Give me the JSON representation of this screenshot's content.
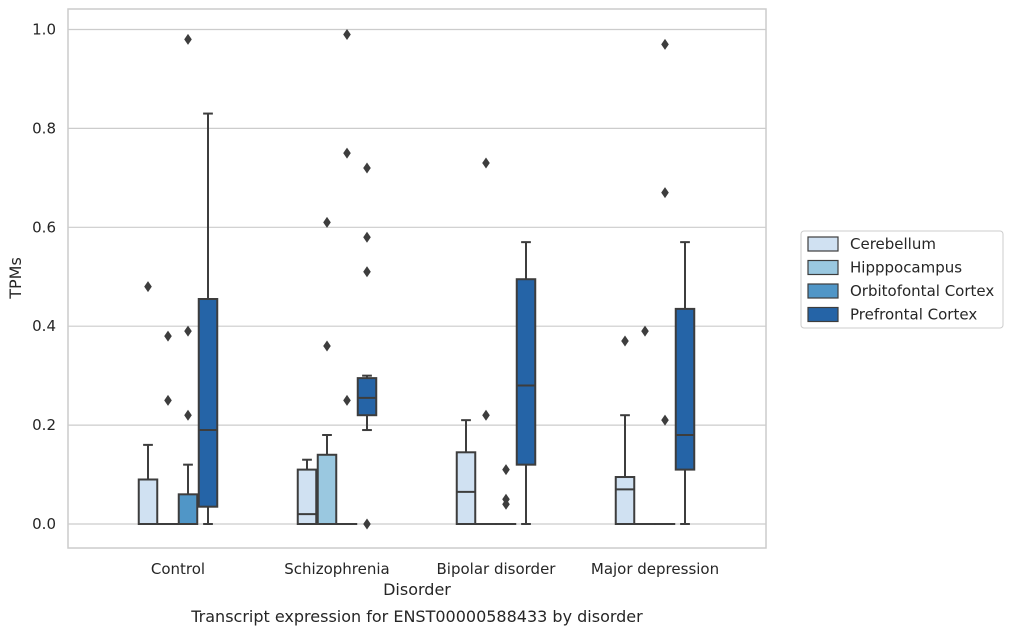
{
  "chart_data": {
    "type": "box",
    "caption": "Transcript expression for ENST00000588433 by disorder",
    "xlabel": "Disorder",
    "ylabel": "TPMs",
    "ylim": [
      -0.05,
      1.04
    ],
    "yticks": [
      0.0,
      0.2,
      0.4,
      0.6,
      0.8,
      1.0
    ],
    "ytick_labels": [
      "0.0",
      "0.2",
      "0.4",
      "0.6",
      "0.8",
      "1.0"
    ],
    "grid": "horizontal",
    "legend_position": "right",
    "categories": [
      "Control",
      "Schizophrenia",
      "Bipolar disorder",
      "Major depression"
    ],
    "series": [
      {
        "name": "Cerebellum",
        "color": "#d0e1f2",
        "boxes": [
          {
            "whislo": 0,
            "q1": 0,
            "med": 0,
            "q3": 0.09,
            "whishi": 0.16,
            "fliers": [
              0.48
            ]
          },
          {
            "whislo": 0,
            "q1": 0,
            "med": 0.02,
            "q3": 0.11,
            "whishi": 0.13,
            "fliers": []
          },
          {
            "whislo": 0,
            "q1": 0,
            "med": 0.065,
            "q3": 0.145,
            "whishi": 0.21,
            "fliers": []
          },
          {
            "whislo": 0,
            "q1": 0,
            "med": 0.07,
            "q3": 0.095,
            "whishi": 0.22,
            "fliers": [
              0.37
            ]
          }
        ]
      },
      {
        "name": "Hipppocampus",
        "color": "#9ac8e0",
        "boxes": [
          {
            "whislo": 0,
            "q1": 0,
            "med": 0,
            "q3": 0,
            "whishi": 0,
            "fliers": [
              0.25,
              0.38
            ]
          },
          {
            "whislo": 0,
            "q1": 0,
            "med": 0,
            "q3": 0.14,
            "whishi": 0.18,
            "fliers": [
              0.36,
              0.61
            ]
          },
          {
            "whislo": 0,
            "q1": 0,
            "med": 0,
            "q3": 0,
            "whishi": 0,
            "fliers": [
              0.22,
              0.73
            ]
          },
          {
            "whislo": 0,
            "q1": 0,
            "med": 0,
            "q3": 0,
            "whishi": 0,
            "fliers": [
              0.39
            ]
          }
        ]
      },
      {
        "name": "Orbitofontal Cortex",
        "color": "#5096c7",
        "boxes": [
          {
            "whislo": 0,
            "q1": 0,
            "med": 0,
            "q3": 0.06,
            "whishi": 0.12,
            "fliers": [
              0.22,
              0.39,
              0.98
            ]
          },
          {
            "whislo": 0,
            "q1": 0,
            "med": 0,
            "q3": 0,
            "whishi": 0,
            "fliers": [
              0.25,
              0.75,
              0.99
            ]
          },
          {
            "whislo": 0,
            "q1": 0,
            "med": 0,
            "q3": 0,
            "whishi": 0,
            "fliers": [
              0.04,
              0.05,
              0.11
            ]
          },
          {
            "whislo": 0,
            "q1": 0,
            "med": 0,
            "q3": 0,
            "whishi": 0,
            "fliers": [
              0.21,
              0.67,
              0.97
            ]
          }
        ]
      },
      {
        "name": "Prefrontal Cortex",
        "color": "#2564a7",
        "boxes": [
          {
            "whislo": 0,
            "q1": 0.035,
            "med": 0.19,
            "q3": 0.455,
            "whishi": 0.83,
            "fliers": []
          },
          {
            "whislo": 0.19,
            "q1": 0.22,
            "med": 0.255,
            "q3": 0.295,
            "whishi": 0.3,
            "fliers": [
              0.0,
              0.51,
              0.58,
              0.72
            ]
          },
          {
            "whislo": 0,
            "q1": 0.12,
            "med": 0.28,
            "q3": 0.495,
            "whishi": 0.57,
            "fliers": []
          },
          {
            "whislo": 0,
            "q1": 0.11,
            "med": 0.18,
            "q3": 0.435,
            "whishi": 0.57,
            "fliers": []
          }
        ]
      }
    ]
  }
}
